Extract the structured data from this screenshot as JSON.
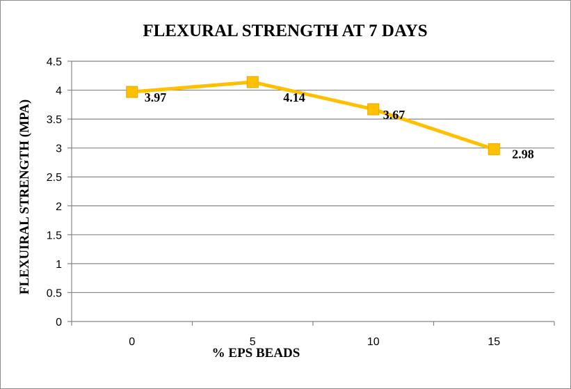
{
  "chart_data": {
    "type": "line",
    "title": "FLEXURAL STRENGTH AT 7 DAYS",
    "xlabel": "% EPS BEADS",
    "ylabel": "FLEXUIRAL STRENGTH (MPA)",
    "categories": [
      "0",
      "5",
      "10",
      "15"
    ],
    "series": [
      {
        "values": [
          3.97,
          4.14,
          3.67,
          2.98
        ],
        "data_labels": [
          "3.97",
          "4.14",
          "3.67",
          "2.98"
        ]
      }
    ],
    "ylim": [
      0,
      4.5
    ],
    "yticks": [
      "0",
      "0.5",
      "1",
      "1.5",
      "2",
      "2.5",
      "3",
      "3.5",
      "4",
      "4.5"
    ],
    "ytick_values": [
      0,
      0.5,
      1,
      1.5,
      2,
      2.5,
      3,
      3.5,
      4,
      4.5
    ],
    "grid": true,
    "legend": "none",
    "line_color": "#FFC000",
    "marker_color": "#FFC000",
    "marker": "square",
    "gridline_color": "#858585"
  }
}
